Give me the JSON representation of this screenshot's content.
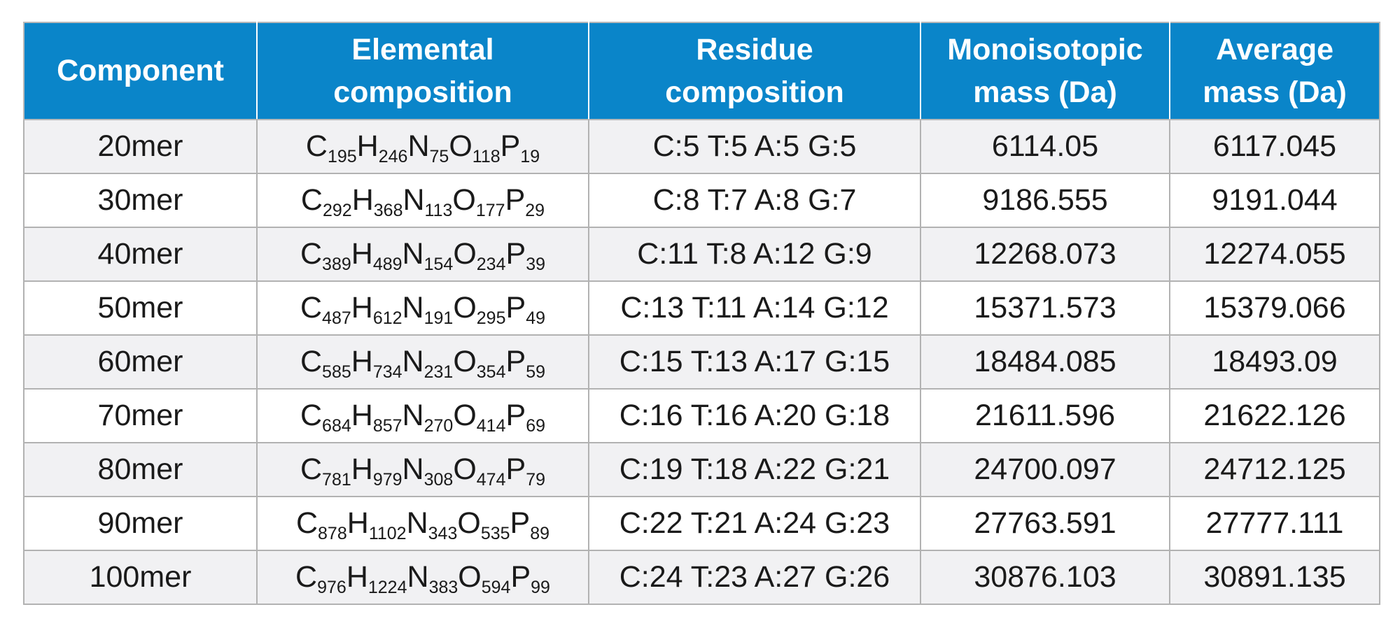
{
  "colors": {
    "header_bg": "#0a85c9",
    "header_text": "#ffffff",
    "row_alt_bg": "#f1f1f3",
    "row_bg": "#ffffff",
    "border": "#b2b2b2"
  },
  "table": {
    "headers": [
      [
        "Component"
      ],
      [
        "Elemental",
        "composition"
      ],
      [
        "Residue",
        "composition"
      ],
      [
        "Monoisotopic",
        "mass (Da)"
      ],
      [
        "Average",
        "mass (Da)"
      ]
    ],
    "rows": [
      {
        "component": "20mer",
        "formula": [
          [
            "C",
            "195"
          ],
          [
            "H",
            "246"
          ],
          [
            "N",
            "75"
          ],
          [
            "O",
            "118"
          ],
          [
            "P",
            "19"
          ]
        ],
        "residue": "C:5 T:5 A:5 G:5",
        "mono": "6114.05",
        "avg": "6117.045"
      },
      {
        "component": "30mer",
        "formula": [
          [
            "C",
            "292"
          ],
          [
            "H",
            "368"
          ],
          [
            "N",
            "113"
          ],
          [
            "O",
            "177"
          ],
          [
            "P",
            "29"
          ]
        ],
        "residue": "C:8 T:7 A:8 G:7",
        "mono": "9186.555",
        "avg": "9191.044"
      },
      {
        "component": "40mer",
        "formula": [
          [
            "C",
            "389"
          ],
          [
            "H",
            "489"
          ],
          [
            "N",
            "154"
          ],
          [
            "O",
            "234"
          ],
          [
            "P",
            "39"
          ]
        ],
        "residue": "C:11 T:8 A:12 G:9",
        "mono": "12268.073",
        "avg": "12274.055"
      },
      {
        "component": "50mer",
        "formula": [
          [
            "C",
            "487"
          ],
          [
            "H",
            "612"
          ],
          [
            "N",
            "191"
          ],
          [
            "O",
            "295"
          ],
          [
            "P",
            "49"
          ]
        ],
        "residue": "C:13 T:11 A:14 G:12",
        "mono": "15371.573",
        "avg": "15379.066"
      },
      {
        "component": "60mer",
        "formula": [
          [
            "C",
            "585"
          ],
          [
            "H",
            "734"
          ],
          [
            "N",
            "231"
          ],
          [
            "O",
            "354"
          ],
          [
            "P",
            "59"
          ]
        ],
        "residue": "C:15 T:13 A:17 G:15",
        "mono": "18484.085",
        "avg": "18493.09"
      },
      {
        "component": "70mer",
        "formula": [
          [
            "C",
            "684"
          ],
          [
            "H",
            "857"
          ],
          [
            "N",
            "270"
          ],
          [
            "O",
            "414"
          ],
          [
            "P",
            "69"
          ]
        ],
        "residue": "C:16 T:16 A:20 G:18",
        "mono": "21611.596",
        "avg": "21622.126"
      },
      {
        "component": "80mer",
        "formula": [
          [
            "C",
            "781"
          ],
          [
            "H",
            "979"
          ],
          [
            "N",
            "308"
          ],
          [
            "O",
            "474"
          ],
          [
            "P",
            "79"
          ]
        ],
        "residue": "C:19 T:18 A:22 G:21",
        "mono": "24700.097",
        "avg": "24712.125"
      },
      {
        "component": "90mer",
        "formula": [
          [
            "C",
            "878"
          ],
          [
            "H",
            "1102"
          ],
          [
            "N",
            "343"
          ],
          [
            "O",
            "535"
          ],
          [
            "P",
            "89"
          ]
        ],
        "residue": "C:22 T:21 A:24 G:23",
        "mono": "27763.591",
        "avg": "27777.111"
      },
      {
        "component": "100mer",
        "formula": [
          [
            "C",
            "976"
          ],
          [
            "H",
            "1224"
          ],
          [
            "N",
            "383"
          ],
          [
            "O",
            "594"
          ],
          [
            "P",
            "99"
          ]
        ],
        "residue": "C:24 T:23 A:27 G:26",
        "mono": "30876.103",
        "avg": "30891.135"
      }
    ]
  }
}
